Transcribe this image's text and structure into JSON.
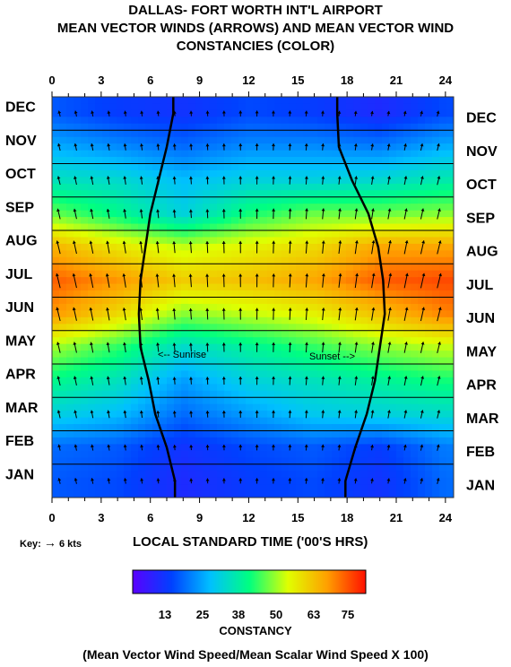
{
  "title_lines": [
    "DALLAS- FORT WORTH INT'L AIRPORT",
    "MEAN VECTOR WINDS (ARROWS) AND MEAN VECTOR WIND",
    "CONSTANCIES (COLOR)"
  ],
  "xlabel": "LOCAL STANDARD TIME ('00'S HRS)",
  "key_text": "Key:",
  "key_arrow": "→",
  "key_value": "6 kts",
  "sunrise_label": "<-- Sunrise",
  "sunset_label": "Sunset -->",
  "colorbar": {
    "title": "CONSTANCY",
    "ticks": [
      "13",
      "25",
      "38",
      "50",
      "63",
      "75"
    ]
  },
  "footer": "(Mean Vector Wind Speed/Mean Scalar Wind Speed X 100)",
  "chart_data": {
    "type": "heatmap",
    "x_ticks": [
      0,
      3,
      6,
      9,
      12,
      15,
      18,
      21,
      24
    ],
    "xlim": [
      0,
      24.5
    ],
    "months_top_to_bottom": [
      "DEC",
      "NOV",
      "OCT",
      "SEP",
      "AUG",
      "JUL",
      "JUN",
      "MAY",
      "APR",
      "MAR",
      "FEB",
      "JAN"
    ],
    "colorscale": [
      "#5a00ff",
      "#0040ff",
      "#00c0ff",
      "#00ff80",
      "#e0ff00",
      "#ffa000",
      "#ff1000"
    ],
    "constancy_range": [
      0,
      90
    ],
    "constancy_by_month_hour": {
      "rows": [
        "DEC",
        "NOV",
        "OCT",
        "SEP",
        "AUG",
        "JUL",
        "JUN",
        "MAY",
        "APR",
        "MAR",
        "FEB",
        "JAN"
      ],
      "hours": [
        0,
        4,
        8,
        12,
        16,
        20,
        24
      ],
      "values": [
        [
          18,
          14,
          12,
          16,
          14,
          10,
          16
        ],
        [
          28,
          24,
          20,
          24,
          24,
          22,
          28
        ],
        [
          38,
          36,
          30,
          34,
          34,
          36,
          40
        ],
        [
          52,
          44,
          34,
          46,
          52,
          52,
          54
        ],
        [
          72,
          64,
          58,
          62,
          66,
          74,
          74
        ],
        [
          82,
          76,
          68,
          70,
          74,
          82,
          84
        ],
        [
          76,
          66,
          54,
          58,
          62,
          70,
          78
        ],
        [
          56,
          48,
          36,
          42,
          48,
          54,
          58
        ],
        [
          44,
          38,
          26,
          34,
          38,
          42,
          46
        ],
        [
          34,
          30,
          20,
          26,
          32,
          34,
          36
        ],
        [
          20,
          18,
          12,
          16,
          18,
          14,
          22
        ],
        [
          18,
          16,
          10,
          14,
          16,
          12,
          20
        ]
      ]
    },
    "sunrise_hour_by_month": [
      7.4,
      7.0,
      6.5,
      6.0,
      5.7,
      5.4,
      5.3,
      5.4,
      5.9,
      6.3,
      7.0,
      7.5
    ],
    "sunset_hour_by_month": [
      17.4,
      17.5,
      18.3,
      19.3,
      19.9,
      20.2,
      20.3,
      20.0,
      19.7,
      19.2,
      18.5,
      17.9
    ]
  }
}
